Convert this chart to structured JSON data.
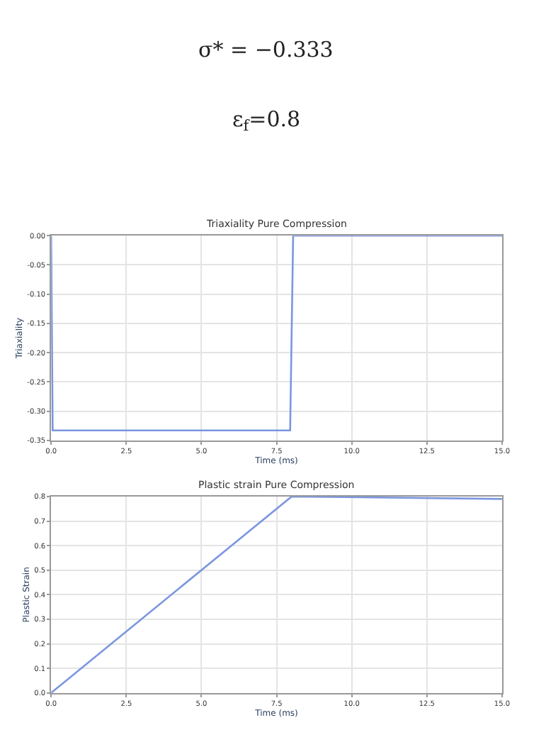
{
  "chart_data": [
    {
      "type": "other",
      "annotations": [
        "σ* = −0.333",
        "ε$_{f}$=0.8"
      ]
    },
    {
      "type": "line",
      "title": "Triaxiality Pure Compression",
      "xlabel": "Time (ms)",
      "ylabel": "Triaxiality",
      "x": [
        0,
        0.05,
        7.95,
        8.05,
        15
      ],
      "series": [
        {
          "color": "#7b96e0",
          "values": [
            0,
            -0.333,
            -0.333,
            0,
            0
          ]
        }
      ],
      "xlim": [
        0,
        15
      ],
      "xticks": [
        {
          "value": 0,
          "label": "0.0"
        },
        2.5,
        {
          "value": 5,
          "label": "5.0"
        },
        7.5,
        {
          "value": 10,
          "label": "10.0"
        },
        12.5,
        {
          "value": 15,
          "label": "15.0"
        }
      ],
      "ylim": [
        -0.35,
        0
      ],
      "yticks": [
        {
          "value": -0.35,
          "label": "-0.35"
        },
        {
          "value": -0.3,
          "label": "-0.30"
        },
        -0.25,
        {
          "value": -0.2,
          "label": "-0.20"
        },
        -0.15,
        {
          "value": -0.1,
          "label": "-0.10"
        },
        -0.05,
        {
          "value": 0,
          "label": "0.00"
        }
      ],
      "grid": true,
      "marker": "none",
      "line_style": "solid"
    },
    {
      "type": "line",
      "title": "Plastic strain Pure Compression",
      "xlabel": "Time (ms)",
      "ylabel": "Plastic Strain",
      "x": [
        0,
        8.0,
        15
      ],
      "series": [
        {
          "color": "#7b96e0",
          "values": [
            0,
            0.8,
            0.79
          ]
        }
      ],
      "xlim": [
        0,
        15
      ],
      "xticks": [
        {
          "value": 0,
          "label": "0.0"
        },
        2.5,
        {
          "value": 5,
          "label": "5.0"
        },
        7.5,
        {
          "value": 10,
          "label": "10.0"
        },
        12.5,
        {
          "value": 15,
          "label": "15.0"
        }
      ],
      "ylim": [
        0,
        0.8
      ],
      "yticks": [
        {
          "value": 0,
          "label": "0.0"
        },
        0.1,
        0.2,
        0.3,
        0.4,
        0.5,
        0.6,
        0.7,
        0.8
      ],
      "grid": true,
      "marker": "none",
      "line_style": "solid"
    }
  ]
}
